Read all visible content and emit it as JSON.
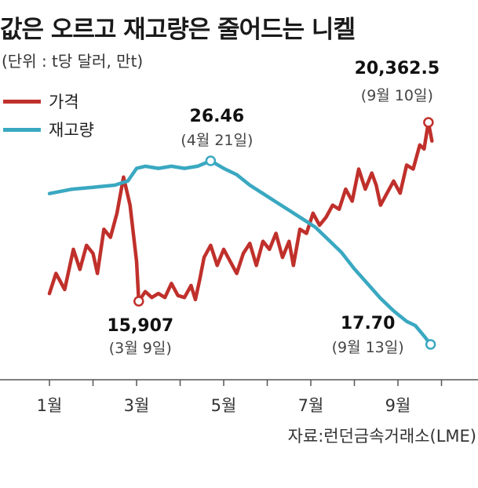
{
  "chart_data": {
    "type": "line",
    "title": "값은 오르고 재고량은 줄어드는 니켈",
    "unit": "(단위 : t당 달러, 만t)",
    "source": "자료:런던금속거래소(LME)",
    "x_ticks": [
      "1월",
      "3월",
      "5월",
      "7월",
      "9월"
    ],
    "colors": {
      "price": "#c0302b",
      "inventory": "#3aa8c1",
      "axis": "#555555"
    },
    "series": [
      {
        "name": "가격",
        "key": "price",
        "values": [
          [
            1.0,
            16100
          ],
          [
            1.15,
            16600
          ],
          [
            1.35,
            16200
          ],
          [
            1.55,
            17200
          ],
          [
            1.7,
            16700
          ],
          [
            1.85,
            17300
          ],
          [
            2.0,
            17100
          ],
          [
            2.1,
            16600
          ],
          [
            2.25,
            17700
          ],
          [
            2.4,
            17500
          ],
          [
            2.55,
            18100
          ],
          [
            2.7,
            19000
          ],
          [
            2.85,
            18300
          ],
          [
            3.0,
            16900
          ],
          [
            3.05,
            15907
          ],
          [
            3.2,
            16150
          ],
          [
            3.35,
            16000
          ],
          [
            3.5,
            16100
          ],
          [
            3.65,
            16000
          ],
          [
            3.8,
            16350
          ],
          [
            3.95,
            16050
          ],
          [
            4.1,
            16000
          ],
          [
            4.25,
            16300
          ],
          [
            4.35,
            15950
          ],
          [
            4.45,
            16450
          ],
          [
            4.55,
            17000
          ],
          [
            4.7,
            17300
          ],
          [
            4.85,
            16800
          ],
          [
            5.0,
            17200
          ],
          [
            5.15,
            16900
          ],
          [
            5.3,
            16600
          ],
          [
            5.45,
            17100
          ],
          [
            5.6,
            17350
          ],
          [
            5.75,
            16800
          ],
          [
            5.9,
            17400
          ],
          [
            6.05,
            17200
          ],
          [
            6.2,
            17600
          ],
          [
            6.35,
            17000
          ],
          [
            6.5,
            17400
          ],
          [
            6.6,
            16800
          ],
          [
            6.75,
            17700
          ],
          [
            6.9,
            17600
          ],
          [
            7.05,
            18100
          ],
          [
            7.2,
            17800
          ],
          [
            7.35,
            18000
          ],
          [
            7.5,
            18300
          ],
          [
            7.65,
            18200
          ],
          [
            7.8,
            18700
          ],
          [
            7.95,
            18400
          ],
          [
            8.1,
            19200
          ],
          [
            8.25,
            18700
          ],
          [
            8.4,
            19100
          ],
          [
            8.5,
            18800
          ],
          [
            8.6,
            18300
          ],
          [
            8.75,
            18600
          ],
          [
            8.9,
            18900
          ],
          [
            9.05,
            18600
          ],
          [
            9.2,
            19300
          ],
          [
            9.35,
            19200
          ],
          [
            9.5,
            19800
          ],
          [
            9.6,
            19700
          ],
          [
            9.7,
            20362.5
          ],
          [
            9.78,
            19900
          ]
        ]
      },
      {
        "name": "재고량",
        "key": "inventory",
        "values": [
          [
            1.0,
            24.9
          ],
          [
            1.5,
            25.1
          ],
          [
            2.0,
            25.2
          ],
          [
            2.5,
            25.3
          ],
          [
            2.8,
            25.5
          ],
          [
            3.0,
            26.1
          ],
          [
            3.2,
            26.2
          ],
          [
            3.5,
            26.1
          ],
          [
            3.8,
            26.2
          ],
          [
            4.1,
            26.1
          ],
          [
            4.4,
            26.2
          ],
          [
            4.7,
            26.46
          ],
          [
            5.0,
            26.1
          ],
          [
            5.3,
            25.8
          ],
          [
            5.6,
            25.3
          ],
          [
            5.9,
            24.9
          ],
          [
            6.2,
            24.5
          ],
          [
            6.5,
            24.1
          ],
          [
            6.8,
            23.7
          ],
          [
            7.1,
            23.3
          ],
          [
            7.4,
            22.7
          ],
          [
            7.7,
            22.1
          ],
          [
            8.0,
            21.3
          ],
          [
            8.3,
            20.6
          ],
          [
            8.6,
            19.9
          ],
          [
            8.9,
            19.3
          ],
          [
            9.2,
            18.8
          ],
          [
            9.4,
            18.6
          ],
          [
            9.6,
            18.1
          ],
          [
            9.75,
            17.7
          ]
        ]
      }
    ],
    "annotations": [
      {
        "series": "price",
        "x": 3.05,
        "y": 15907,
        "value": "15,907",
        "date": "(3월 9일)"
      },
      {
        "series": "inventory",
        "x": 4.7,
        "y": 26.46,
        "value": "26.46",
        "date": "(4월 21일)"
      },
      {
        "series": "price",
        "x": 9.7,
        "y": 20362.5,
        "value": "20,362.5",
        "date": "(9월 10일)"
      },
      {
        "series": "inventory",
        "x": 9.75,
        "y": 17.7,
        "value": "17.70",
        "date": "(9월 13일)"
      }
    ]
  }
}
